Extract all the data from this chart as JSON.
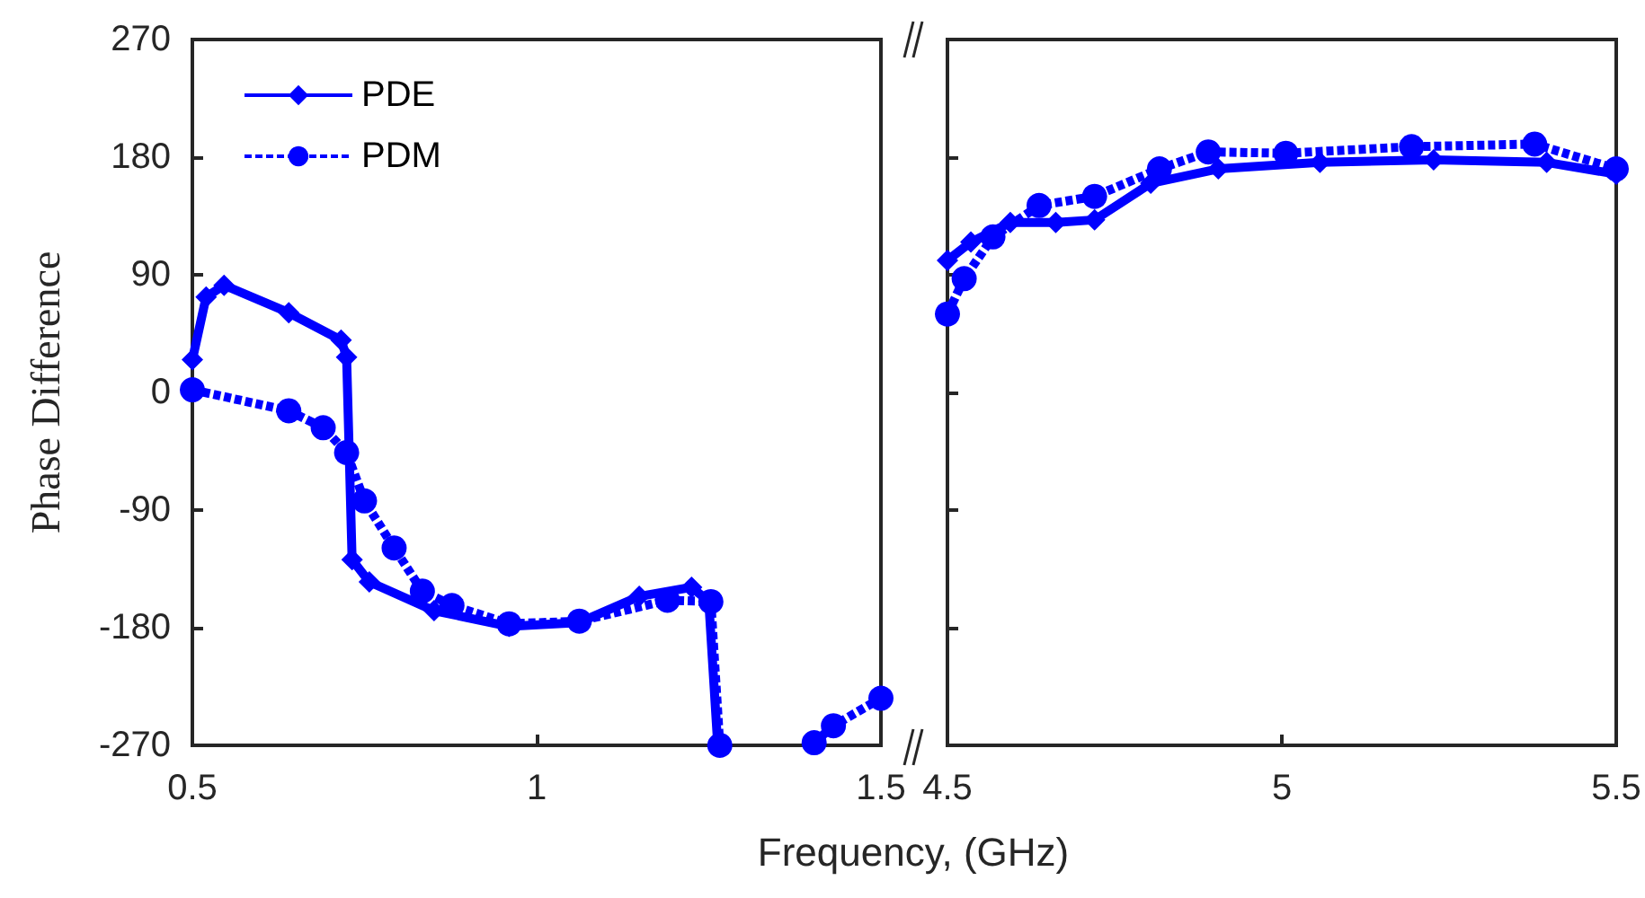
{
  "chart_data": [
    {
      "type": "line",
      "ylabel": "Phase Difference",
      "xlabel": "Frequency, (GHz)",
      "xlim": [
        0.5,
        1.5
      ],
      "xticks": [
        0.5,
        1,
        1.5
      ],
      "ylim": [
        -270,
        270
      ],
      "yticks": [
        -270,
        -180,
        -90,
        0,
        90,
        180,
        270
      ],
      "grid": false,
      "legend": "top left",
      "series": [
        {
          "name": "PDE",
          "color": "#0000ff",
          "marker": "diamond",
          "line_style": "solid",
          "x": [
            0.5,
            0.52,
            0.546,
            0.64,
            0.716,
            0.724,
            0.732,
            0.757,
            0.851,
            0.96,
            1.062,
            1.149,
            1.225,
            1.25,
            1.263
          ],
          "values": [
            25,
            73,
            82,
            61,
            40,
            27,
            -128,
            -145,
            -167,
            -179,
            -176,
            -156,
            -149,
            -160,
            -270
          ]
        },
        {
          "name": "PDM",
          "color": "#0000ff",
          "marker": "circle",
          "line_style": "dashed",
          "x": [
            0.5,
            0.64,
            0.69,
            0.724,
            0.75,
            0.793,
            0.834,
            0.877,
            0.96,
            1.062,
            1.19,
            1.253,
            1.266,
            1.33,
            1.403,
            1.431,
            1.5
          ],
          "values": [
            2,
            -14,
            -27,
            -46,
            -83,
            -119,
            -152,
            -163,
            -177,
            -175,
            -159,
            -160,
            -270,
            null,
            -268,
            -255,
            -234
          ]
        }
      ]
    },
    {
      "type": "line",
      "xlim": [
        4.5,
        5.5
      ],
      "xticks": [
        4.5,
        5,
        5.5
      ],
      "ylim": [
        -270,
        270
      ],
      "yticks": [
        -270,
        -180,
        -90,
        0,
        90,
        180,
        270
      ],
      "grid": false,
      "tick_labels": "x",
      "series": [
        {
          "color": "#0000ff",
          "marker": "diamond",
          "line_style": "solid",
          "x": [
            4.5,
            4.535,
            4.594,
            4.662,
            4.72,
            4.804,
            4.905,
            5.057,
            5.227,
            5.396,
            5.5
          ],
          "values": [
            101,
            115,
            130,
            130,
            132,
            160,
            171,
            176,
            178,
            176,
            167
          ]
        },
        {
          "color": "#0000ff",
          "marker": "circle",
          "line_style": "dashed",
          "x": [
            4.5,
            4.525,
            4.568,
            4.637,
            4.72,
            4.817,
            4.89,
            5.006,
            5.194,
            5.378,
            5.5
          ],
          "values": [
            60,
            87,
            119,
            143,
            150,
            171,
            184,
            183,
            188,
            190,
            171
          ]
        }
      ]
    }
  ]
}
